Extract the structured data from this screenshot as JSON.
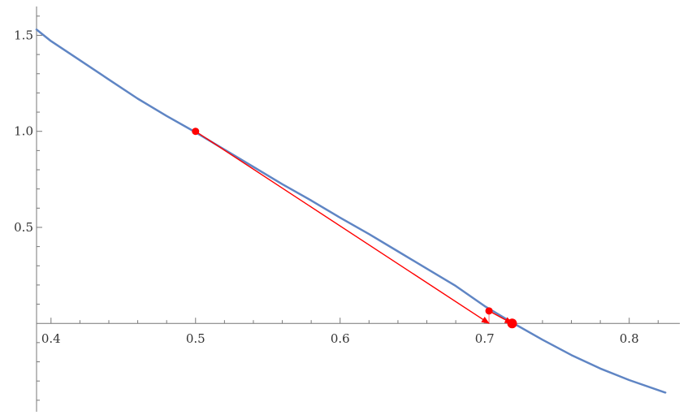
{
  "chart_data": {
    "type": "line",
    "title": "",
    "xlabel": "",
    "ylabel": "",
    "xlim": [
      0.39,
      0.835
    ],
    "ylim": [
      -0.46,
      1.65
    ],
    "axis_origin": [
      0.39,
      0
    ],
    "grid": false,
    "x_ticks": [
      0.4,
      0.5,
      0.6,
      0.7,
      0.8
    ],
    "x_tick_labels": [
      "0.4",
      "0.5",
      "0.6",
      "0.7",
      "0.8"
    ],
    "y_ticks": [
      0.5,
      1.0,
      1.5
    ],
    "y_tick_labels": [
      "0.5",
      "1.0",
      "1.5"
    ],
    "series": [
      {
        "color": "#5f85c4",
        "x": [
          0.39,
          0.4,
          0.42,
          0.44,
          0.46,
          0.48,
          0.5,
          0.52,
          0.54,
          0.56,
          0.58,
          0.6,
          0.62,
          0.64,
          0.66,
          0.68,
          0.7,
          0.72,
          0.74,
          0.76,
          0.78,
          0.8,
          0.825
        ],
        "y": [
          1.53,
          1.47,
          1.37,
          1.27,
          1.17,
          1.08,
          0.995,
          0.905,
          0.815,
          0.725,
          0.64,
          0.55,
          0.465,
          0.375,
          0.285,
          0.195,
          0.09,
          0.0,
          -0.085,
          -0.165,
          -0.235,
          -0.295,
          -0.36
        ]
      }
    ],
    "points": [
      {
        "x": 0.5,
        "y": 1.0,
        "color": "#ff0000",
        "r": 4.5
      },
      {
        "x": 0.703,
        "y": 0.065,
        "color": "#ff0000",
        "r": 4.5
      },
      {
        "x": 0.719,
        "y": 0.0,
        "color": "#ff0000",
        "r": 6
      }
    ],
    "arrows": [
      {
        "from": [
          0.5,
          1.0
        ],
        "to": [
          0.703,
          0.0
        ],
        "color": "#ff0000"
      },
      {
        "from": [
          0.703,
          0.065
        ],
        "to": [
          0.719,
          0.0
        ],
        "color": "#ff0000"
      }
    ],
    "drops": [
      {
        "x": 0.703,
        "from_y": 0.0,
        "to_y": 0.065,
        "color": "#ff8a8a"
      }
    ]
  }
}
